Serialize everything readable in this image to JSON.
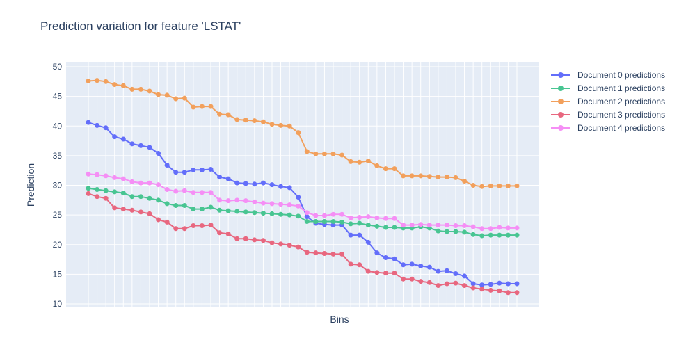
{
  "chart_data": {
    "type": "line",
    "title": "Prediction variation for feature 'LSTAT'",
    "xlabel": "Bins",
    "ylabel": "Prediction",
    "ylim": [
      10,
      50
    ],
    "yticks": [
      10,
      15,
      20,
      25,
      30,
      35,
      40,
      45,
      50
    ],
    "grid": true,
    "legend_position": "top-right",
    "x": [
      1,
      2,
      3,
      4,
      5,
      6,
      7,
      8,
      9,
      10,
      11,
      12,
      13,
      14,
      15,
      16,
      17,
      18,
      19,
      20,
      21,
      22,
      23,
      24,
      25,
      26,
      27,
      28,
      29,
      30,
      31,
      32,
      33,
      34,
      35,
      36,
      37,
      38,
      39,
      40,
      41,
      42,
      43,
      44,
      45,
      46,
      47,
      48,
      49,
      50
    ],
    "series": [
      {
        "name": "Document 0 predictions",
        "color": "#636efa",
        "values": [
          40.6,
          40.1,
          39.7,
          38.2,
          37.8,
          37.0,
          36.7,
          36.4,
          35.4,
          33.4,
          32.2,
          32.2,
          32.6,
          32.6,
          32.7,
          31.4,
          31.1,
          30.4,
          30.3,
          30.2,
          30.4,
          30.1,
          29.8,
          29.6,
          28.0,
          24.7,
          23.6,
          23.4,
          23.3,
          23.3,
          21.6,
          21.6,
          20.4,
          18.6,
          17.8,
          17.6,
          16.6,
          16.7,
          16.4,
          16.2,
          15.5,
          15.6,
          15.1,
          14.7,
          13.4,
          13.2,
          13.3,
          13.5,
          13.4,
          13.4
        ]
      },
      {
        "name": "Document 1 predictions",
        "color": "#48c592",
        "values": [
          29.5,
          29.3,
          29.1,
          28.9,
          28.7,
          28.1,
          28.1,
          27.8,
          27.5,
          26.9,
          26.6,
          26.6,
          26.0,
          26.0,
          26.3,
          25.8,
          25.7,
          25.6,
          25.5,
          25.4,
          25.3,
          25.2,
          25.1,
          25.0,
          24.8,
          23.9,
          23.9,
          23.9,
          23.9,
          23.8,
          23.5,
          23.6,
          23.3,
          23.1,
          22.9,
          22.9,
          22.8,
          22.8,
          23.0,
          22.8,
          22.3,
          22.2,
          22.2,
          22.1,
          21.7,
          21.5,
          21.6,
          21.6,
          21.6,
          21.6
        ]
      },
      {
        "name": "Document 2 predictions",
        "color": "#f2a05c",
        "values": [
          47.6,
          47.7,
          47.5,
          47.0,
          46.8,
          46.2,
          46.2,
          45.9,
          45.3,
          45.2,
          44.6,
          44.7,
          43.2,
          43.3,
          43.3,
          42.0,
          41.9,
          41.1,
          41.0,
          40.9,
          40.7,
          40.3,
          40.1,
          40.0,
          38.9,
          35.7,
          35.3,
          35.3,
          35.3,
          35.1,
          34.0,
          33.9,
          34.1,
          33.3,
          32.8,
          32.8,
          31.6,
          31.6,
          31.6,
          31.5,
          31.4,
          31.4,
          31.3,
          30.7,
          30.0,
          29.8,
          29.9,
          29.9,
          29.9,
          29.9
        ]
      },
      {
        "name": "Document 3 predictions",
        "color": "#e8677f",
        "values": [
          28.6,
          28.1,
          27.8,
          26.2,
          26.0,
          25.8,
          25.5,
          25.2,
          24.2,
          23.8,
          22.7,
          22.7,
          23.2,
          23.2,
          23.3,
          22.0,
          21.8,
          21.0,
          21.0,
          20.8,
          20.7,
          20.3,
          20.1,
          19.9,
          19.6,
          18.7,
          18.6,
          18.5,
          18.4,
          18.4,
          16.7,
          16.6,
          15.5,
          15.3,
          15.2,
          15.2,
          14.2,
          14.2,
          13.8,
          13.6,
          13.1,
          13.4,
          13.5,
          13.1,
          12.7,
          12.5,
          12.3,
          12.2,
          11.9,
          11.9
        ]
      },
      {
        "name": "Document 4 predictions",
        "color": "#f58ff5",
        "values": [
          31.9,
          31.8,
          31.6,
          31.3,
          31.1,
          30.6,
          30.4,
          30.4,
          30.1,
          29.3,
          29.0,
          29.1,
          28.8,
          28.8,
          28.8,
          27.5,
          27.4,
          27.5,
          27.4,
          27.2,
          27.0,
          26.9,
          26.8,
          26.7,
          26.5,
          25.4,
          24.9,
          24.9,
          25.1,
          25.1,
          24.5,
          24.6,
          24.7,
          24.5,
          24.4,
          24.4,
          23.3,
          23.3,
          23.4,
          23.3,
          23.3,
          23.3,
          23.2,
          23.2,
          23.0,
          22.7,
          22.7,
          22.9,
          22.8,
          22.8
        ]
      }
    ]
  }
}
